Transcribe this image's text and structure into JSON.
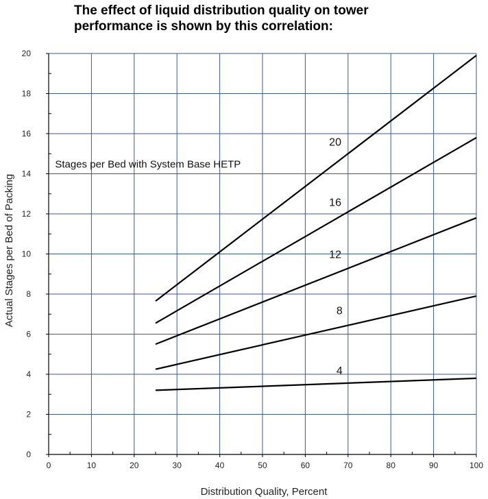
{
  "chart_data": {
    "type": "line",
    "title_lines": [
      "The effect of liquid distribution quality on tower",
      "performance is shown by this correlation:"
    ],
    "xlabel": "Distribution Quality, Percent",
    "ylabel": "Actual Stages per Bed of Packing",
    "xlim": [
      0,
      100
    ],
    "ylim": [
      0,
      20
    ],
    "x_ticks": [
      0,
      10,
      20,
      30,
      40,
      50,
      60,
      70,
      80,
      90,
      100
    ],
    "y_ticks": [
      0,
      2,
      4,
      6,
      8,
      10,
      12,
      14,
      16,
      18,
      20
    ],
    "grid": true,
    "annotation": "Stages per Bed with System Base HETP",
    "series": [
      {
        "name": "4",
        "x": [
          25,
          100
        ],
        "y": [
          3.2,
          3.8
        ]
      },
      {
        "name": "8",
        "x": [
          25,
          100
        ],
        "y": [
          4.25,
          7.9
        ]
      },
      {
        "name": "12",
        "x": [
          25,
          100
        ],
        "y": [
          5.5,
          11.8
        ]
      },
      {
        "name": "16",
        "x": [
          25,
          100
        ],
        "y": [
          6.55,
          15.8
        ]
      },
      {
        "name": "20",
        "x": [
          25,
          100
        ],
        "y": [
          7.65,
          19.9
        ]
      }
    ],
    "series_label_positions": [
      {
        "name": "4",
        "x": 68,
        "y": 4.0
      },
      {
        "name": "8",
        "x": 68,
        "y": 7.0
      },
      {
        "name": "12",
        "x": 67,
        "y": 9.8
      },
      {
        "name": "16",
        "x": 67,
        "y": 12.4
      },
      {
        "name": "20",
        "x": 67,
        "y": 15.4
      }
    ],
    "annotation_position": {
      "x": 1.5,
      "y": 14.3
    }
  },
  "colors": {
    "grid": "#3a5a8c",
    "axis": "#000000",
    "line": "#000000"
  }
}
